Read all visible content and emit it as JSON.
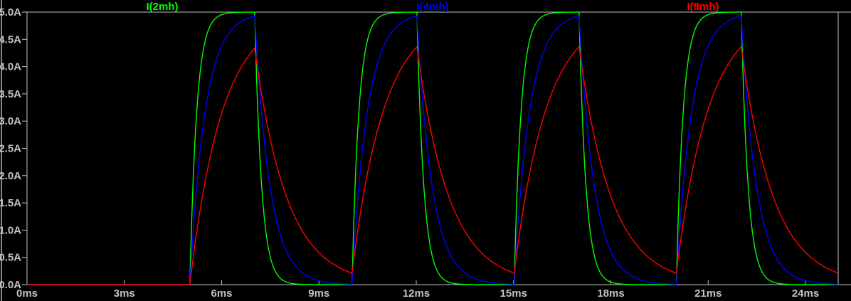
{
  "window": {
    "background_color": "#000000",
    "left_border_color": "#8a8a8a"
  },
  "axes": {
    "line_color": "#c3c3c3",
    "tick_label_color": "#c3c3c3"
  },
  "chart_data": {
    "type": "line",
    "title": "",
    "grid": false,
    "legend_position": "top-evenly-spaced",
    "x_axis": {
      "unit": "ms",
      "min_ms": 0,
      "max_ms": 25,
      "tick_labels": [
        "0ms",
        "3ms",
        "6ms",
        "9ms",
        "12ms",
        "15ms",
        "18ms",
        "21ms",
        "24ms"
      ],
      "tick_values_ms": [
        0,
        3,
        6,
        9,
        12,
        15,
        18,
        21,
        24
      ]
    },
    "y_axis": {
      "unit": "A",
      "min_A": 0,
      "max_A": 5,
      "tick_labels": [
        "0.0A",
        "0.5A",
        "1.0A",
        "1.5A",
        "2.0A",
        "2.5A",
        "3.0A",
        "3.5A",
        "4.0A",
        "4.5A",
        "5.0A"
      ],
      "tick_values_A": [
        0,
        0.5,
        1,
        1.5,
        2,
        2.5,
        3,
        3.5,
        4,
        4.5,
        5
      ]
    },
    "series": [
      {
        "name": "I(2mh)",
        "color": "#00ff00",
        "tau_ms": 0.22,
        "peak_A": 5.0,
        "min_between_pulses_A": 0.0
      },
      {
        "name": "I(4mh)",
        "color": "#0000ff",
        "tau_ms": 0.48,
        "peak_A": 4.9,
        "min_between_pulses_A": 0.0
      },
      {
        "name": "I(8mh)",
        "color": "#ff0000",
        "tau_ms": 1.0,
        "peak_A": 4.33,
        "min_between_pulses_A": 0.22
      }
    ],
    "waveform_model": {
      "kind": "RL-charge-discharge-exponential",
      "drive_level_A": 5,
      "pulse_on_intervals_ms": [
        [
          5,
          7
        ],
        [
          10,
          12
        ],
        [
          15,
          17
        ],
        [
          20,
          22
        ]
      ],
      "t_end_ms": 25,
      "sample_step_ms": 0.02
    }
  }
}
